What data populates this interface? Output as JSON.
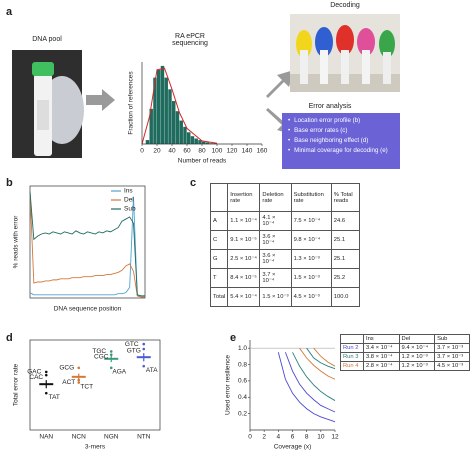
{
  "panel_labels": [
    "a",
    "b",
    "c",
    "d",
    "e"
  ],
  "panel_a": {
    "photo_label": "DNA pool",
    "decoding_label": "Decoding",
    "error_analysis": {
      "title": "Error analysis",
      "items": [
        "Location error profile (b)",
        "Base error rates (c)",
        "Base neighboring effect (d)",
        "Minimal coverage for decoding (e)"
      ]
    }
  },
  "chart_data": [
    {
      "type": "histogram",
      "title": "RA ePCR sequencing",
      "xlabel": "Number of reads",
      "ylabel": "Fraction of references",
      "bins": [
        0,
        5,
        10,
        15,
        20,
        25,
        30,
        35,
        40,
        45,
        50,
        55,
        60,
        65,
        70,
        75,
        80,
        85,
        90,
        95,
        100,
        105,
        110,
        115,
        120,
        125,
        130,
        135,
        140,
        145,
        150,
        155,
        160
      ],
      "values": [
        0.0,
        0.05,
        0.45,
        0.85,
        0.95,
        1.0,
        0.85,
        0.7,
        0.55,
        0.42,
        0.3,
        0.22,
        0.15,
        0.1,
        0.07,
        0.05,
        0.03,
        0.02,
        0.01,
        0.01,
        0,
        0,
        0,
        0,
        0,
        0,
        0,
        0,
        0,
        0,
        0,
        0
      ],
      "color": "#1f6b5e",
      "xlim": [
        0,
        160
      ],
      "ylim": [
        0,
        1.05
      ],
      "xticks": [
        0,
        20,
        40,
        60,
        80,
        100,
        120,
        140,
        160
      ],
      "fit": {
        "color": "#d62728",
        "x": [
          0,
          10,
          20,
          30,
          40,
          50,
          60,
          80,
          100
        ],
        "values": [
          0,
          0.35,
          0.95,
          0.97,
          0.7,
          0.4,
          0.2,
          0.04,
          0.01
        ]
      }
    },
    {
      "type": "line",
      "xlabel": "DNA sequence position",
      "ylabel": "% reads with error",
      "legend": "upper right",
      "x": [
        0,
        5,
        10,
        15,
        20,
        25,
        30,
        35,
        40,
        45,
        50,
        55,
        60,
        65,
        70,
        75,
        80,
        85,
        90,
        95,
        100,
        105,
        110,
        115,
        120,
        125,
        130,
        135,
        140,
        145,
        150
      ],
      "xlim": [
        0,
        150
      ],
      "ylim": [
        0,
        1.05
      ],
      "series": [
        {
          "name": "Ins",
          "color": "#4fa3d1",
          "values": [
            0.05,
            0.03,
            0.03,
            0.03,
            0.03,
            0.03,
            0.03,
            0.03,
            0.03,
            0.03,
            0.03,
            0.03,
            0.03,
            0.03,
            0.03,
            0.03,
            0.03,
            0.03,
            0.03,
            0.03,
            0.03,
            0.03,
            0.03,
            0.04,
            0.04,
            0.05,
            0.1,
            0.95,
            0.02,
            0.01,
            0.01
          ]
        },
        {
          "name": "Del",
          "color": "#d2793a",
          "values": [
            1.0,
            0.14,
            0.15,
            0.15,
            0.16,
            0.16,
            0.17,
            0.17,
            0.18,
            0.18,
            0.18,
            0.19,
            0.19,
            0.19,
            0.2,
            0.2,
            0.2,
            0.21,
            0.21,
            0.21,
            0.22,
            0.22,
            0.23,
            0.24,
            0.26,
            0.3,
            0.32,
            0.25,
            0.02,
            0.01,
            0.01
          ]
        },
        {
          "name": "Sub",
          "color": "#1e6b63",
          "values": [
            1.0,
            0.55,
            0.58,
            0.6,
            0.61,
            0.6,
            0.62,
            0.61,
            0.6,
            0.62,
            0.61,
            0.6,
            0.63,
            0.61,
            0.6,
            0.62,
            0.61,
            0.6,
            0.62,
            0.61,
            0.63,
            0.62,
            0.64,
            0.66,
            0.72,
            0.74,
            0.76,
            0.7,
            0.03,
            0.02,
            0.02
          ]
        }
      ]
    },
    {
      "type": "scatter",
      "xlabel": "3-mers",
      "ylabel": "Total error rate",
      "ylim": [
        0,
        1.1
      ],
      "categories": [
        "NAN",
        "NCN",
        "NGN",
        "NTN"
      ],
      "series": [
        {
          "color": "#111111",
          "labels": [
            "GAC",
            "CAC",
            "TAT"
          ],
          "values": [
            0.71,
            0.67,
            0.45
          ],
          "mean": 0.56,
          "error": 0.05
        },
        {
          "color": "#d2793a",
          "labels": [
            "GCG",
            "ACT",
            "TCT"
          ],
          "values": [
            0.76,
            0.61,
            0.58
          ],
          "mean": 0.65,
          "error": 0.04
        },
        {
          "color": "#3c9a77",
          "labels": [
            "TGC",
            "CGC",
            "AGA"
          ],
          "values": [
            0.96,
            0.92,
            0.76
          ],
          "mean": 0.87,
          "error": 0.04
        },
        {
          "color": "#4a5bd6",
          "labels": [
            "GTC",
            "GTG",
            "ATA"
          ],
          "values": [
            1.05,
            0.99,
            0.78
          ],
          "mean": 0.89,
          "error": 0.05
        }
      ]
    },
    {
      "type": "line",
      "xlabel": "Coverage (x)",
      "ylabel": "Used error resilience",
      "xlim": [
        0,
        12
      ],
      "ylim": [
        0,
        1.1
      ],
      "xticks": [
        0,
        2,
        4,
        6,
        8,
        10,
        12
      ],
      "yticks": [
        0.2,
        0.4,
        0.6,
        0.8,
        {
          "value": 1,
          "label": "1.0"
        }
      ],
      "reference_line": 1,
      "series": [
        {
          "color": "#4a4ad0",
          "x": [
            4,
            5,
            6,
            7,
            8,
            9,
            10,
            11,
            12
          ],
          "values": [
            0.95,
            0.62,
            0.45,
            0.34,
            0.26,
            0.2,
            0.16,
            0.13,
            0.1
          ]
        },
        {
          "color": "#4a4ad0",
          "x": [
            5,
            6,
            7,
            8,
            9,
            10,
            11,
            12
          ],
          "values": [
            0.95,
            0.72,
            0.56,
            0.45,
            0.37,
            0.3,
            0.26,
            0.22
          ]
        },
        {
          "color": "#2a8080",
          "x": [
            6,
            7,
            8,
            9,
            10,
            11,
            12
          ],
          "values": [
            0.95,
            0.78,
            0.65,
            0.55,
            0.47,
            0.41,
            0.36
          ]
        },
        {
          "color": "#2a8080",
          "x": [
            8,
            9,
            10,
            11,
            12
          ],
          "values": [
            1.0,
            0.88,
            0.82,
            0.78,
            0.75
          ]
        },
        {
          "color": "#d2793a",
          "x": [
            7,
            8,
            9,
            10,
            11,
            12
          ],
          "values": [
            1.0,
            0.88,
            0.79,
            0.72,
            0.66,
            0.62
          ]
        },
        {
          "color": "#d2793a",
          "x": [
            9,
            10,
            11,
            12
          ],
          "values": [
            1.0,
            0.9,
            0.83,
            0.78
          ]
        }
      ]
    }
  ],
  "table_c": {
    "header": [
      "Insertion rate",
      "Deletion rate",
      "Substitution rate",
      "% Total reads"
    ],
    "rows": [
      [
        "A",
        "1.1 × 10⁻⁴",
        "4.1 × 10⁻⁴",
        "7.5 × 10⁻⁴",
        "24.6"
      ],
      [
        "C",
        "9.1 × 10⁻⁵",
        "3.6 × 10⁻⁴",
        "9.8 × 10⁻⁴",
        "25.1"
      ],
      [
        "G",
        "2.5 × 10⁻⁴",
        "3.6 × 10⁻⁴",
        "1.3 × 10⁻³",
        "25.1"
      ],
      [
        "T",
        "8.4 × 10⁻⁵",
        "3.7 × 10⁻⁴",
        "1.5 × 10⁻³",
        "25.2"
      ],
      [
        "Total",
        "5.4 × 10⁻⁴",
        "1.5 × 10⁻³",
        "4.5 × 10⁻³",
        "100.0"
      ]
    ]
  },
  "table_e": {
    "header": [
      "Ins",
      "Del",
      "Sub"
    ],
    "row_colors": [
      "#4a4ad0",
      "#2a8080",
      "#d2793a"
    ],
    "rows": [
      [
        "Run 2",
        "3.4 × 10⁻⁴",
        "9.4 × 10⁻⁴",
        "3.7 × 10⁻³"
      ],
      [
        "Run 3",
        "3.8 × 10⁻⁴",
        "1.2 × 10⁻³",
        "3.7 × 10⁻³"
      ],
      [
        "Run 4",
        "2.8 × 10⁻⁴",
        "1.2 × 10⁻³",
        "4.5 × 10⁻³"
      ]
    ]
  }
}
